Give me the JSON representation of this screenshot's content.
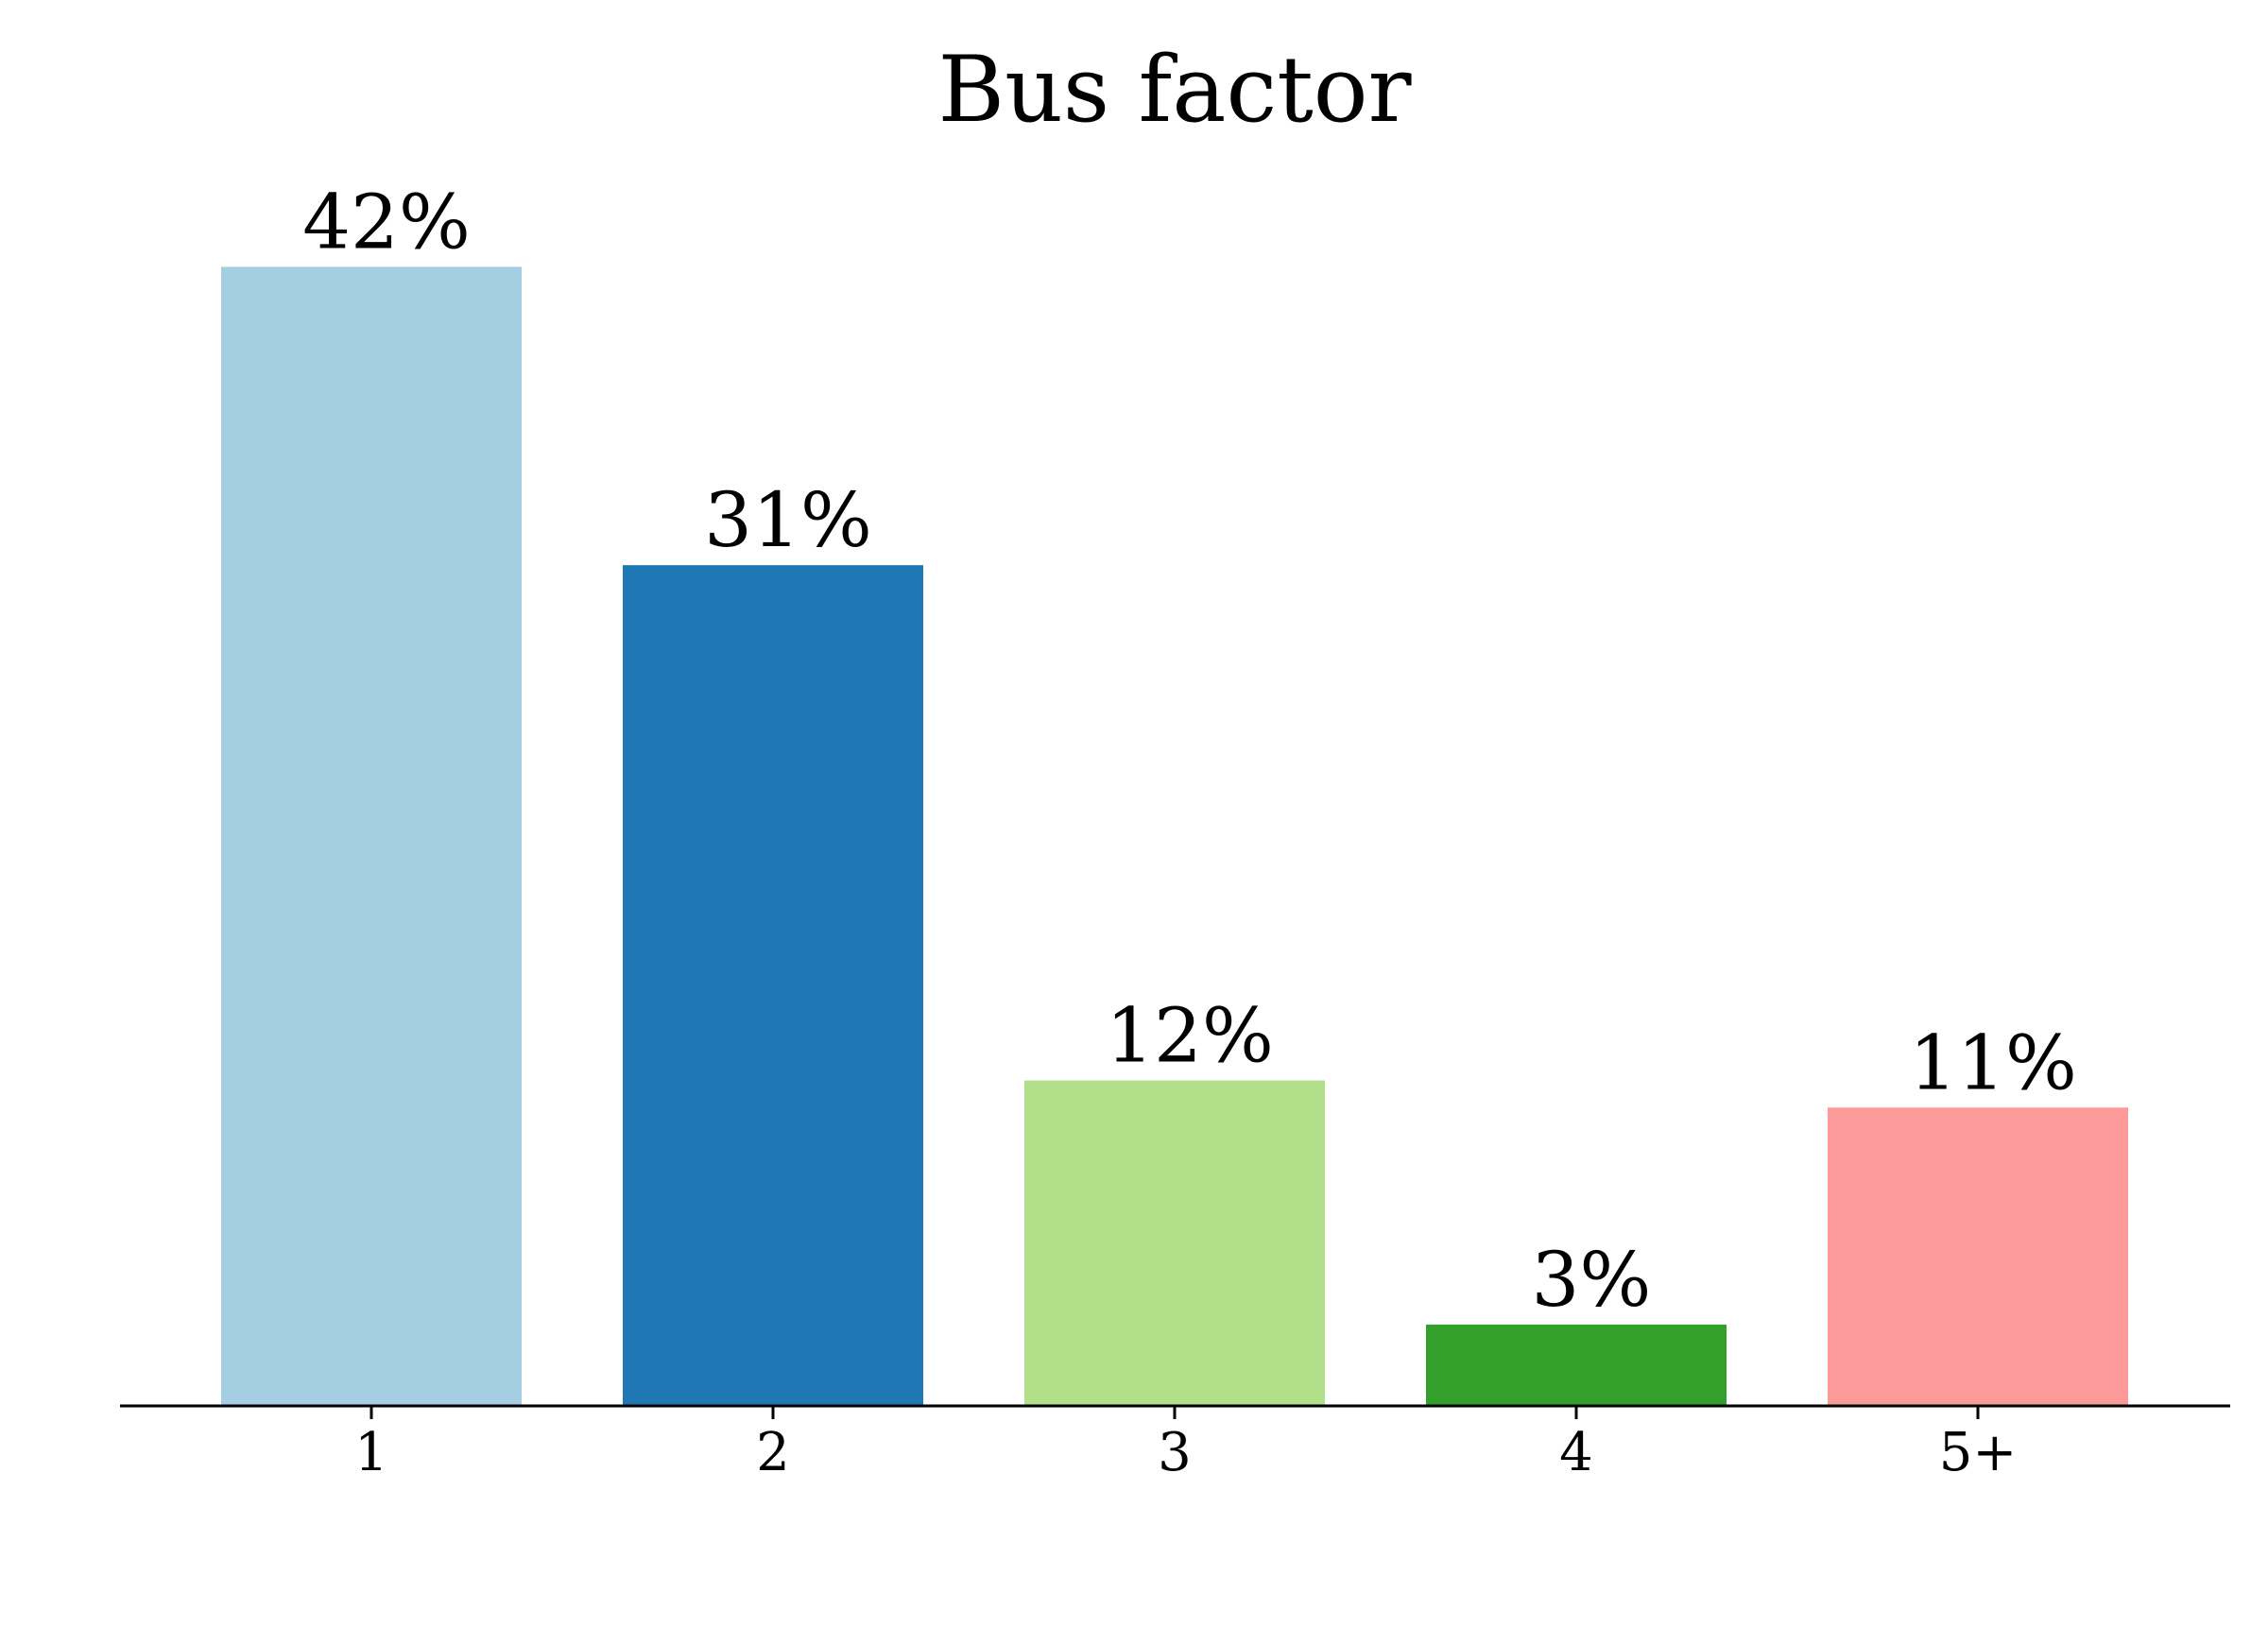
{
  "chart_data": {
    "type": "bar",
    "title": "Bus factor",
    "xlabel": "",
    "ylabel": "",
    "categories": [
      "1",
      "2",
      "3",
      "4",
      "5+"
    ],
    "values": [
      42,
      31,
      12,
      3,
      11
    ],
    "data_labels": [
      "42%",
      "31%",
      "12%",
      "3%",
      "11%"
    ],
    "colors": [
      "#a6cee3",
      "#1f78b4",
      "#b2df8a",
      "#33a02c",
      "#fb9a99"
    ],
    "ylim": [
      0,
      44
    ],
    "grid": false,
    "legend": "none"
  }
}
